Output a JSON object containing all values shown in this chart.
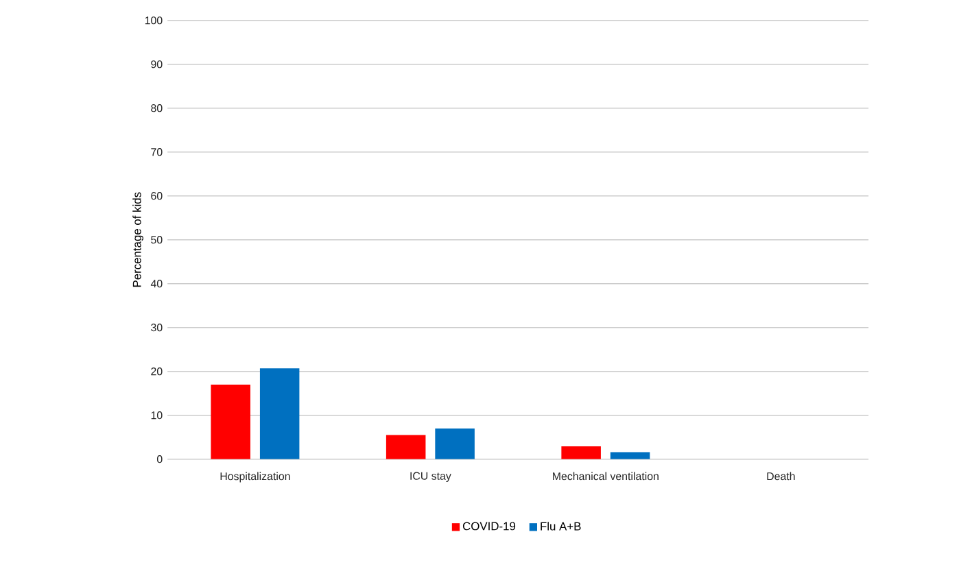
{
  "chart_data": {
    "type": "bar",
    "ylabel": "Percentage of kids",
    "categories": [
      "Hospitalization",
      "ICU stay",
      "Mechanical ventilation",
      "Death"
    ],
    "series": [
      {
        "name": "COVID-19",
        "color": "#ff0000",
        "values": [
          17.0,
          5.5,
          2.9,
          0
        ]
      },
      {
        "name": "Flu A+B",
        "color": "#0070c0",
        "values": [
          20.7,
          7.0,
          1.6,
          0
        ]
      }
    ],
    "ylim": [
      0,
      100
    ],
    "yticks": [
      0,
      10,
      20,
      30,
      40,
      50,
      60,
      70,
      80,
      90,
      100
    ],
    "grid": "y",
    "legend": "bottom"
  }
}
